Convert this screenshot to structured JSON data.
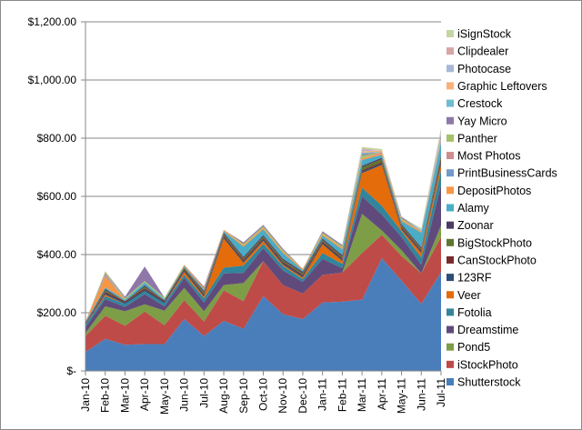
{
  "chart_data": {
    "type": "area",
    "stacked": true,
    "title": "",
    "xlabel": "",
    "ylabel": "",
    "ylim": [
      0,
      1200
    ],
    "y_tick_values": [
      0,
      200,
      400,
      600,
      800,
      1000,
      1200
    ],
    "y_tick_labels": [
      "$-",
      "$200.00",
      "$400.00",
      "$600.00",
      "$800.00",
      "$1,000.00",
      "$1,200.00"
    ],
    "grid": true,
    "legend_position": "right",
    "categories": [
      "Jan-10",
      "Feb-10",
      "Mar-10",
      "Apr-10",
      "May-10",
      "Jun-10",
      "Jul-10",
      "Aug-10",
      "Sep-10",
      "Oct-10",
      "Nov-10",
      "Dec-10",
      "Jan-11",
      "Feb-11",
      "Mar-11",
      "Apr-11",
      "May-11",
      "Jun-11",
      "Jul-11"
    ],
    "series": [
      {
        "name": "Shutterstock",
        "color": "#4a7ebb",
        "values": [
          65,
          110,
          90,
          92,
          92,
          178,
          120,
          172,
          145,
          257,
          195,
          178,
          235,
          238,
          245,
          388,
          310,
          230,
          340
        ]
      },
      {
        "name": "iStockPhoto",
        "color": "#be4b48",
        "values": [
          55,
          80,
          65,
          112,
          65,
          65,
          50,
          105,
          95,
          120,
          100,
          88,
          95,
          100,
          160,
          80,
          85,
          105,
          120
        ]
      },
      {
        "name": "Pond5",
        "color": "#7d9d46",
        "values": [
          10,
          32,
          50,
          25,
          50,
          42,
          35,
          18,
          62,
          0,
          0,
          0,
          0,
          0,
          135,
          15,
          20,
          0,
          40
        ]
      },
      {
        "name": "Dreamstime",
        "color": "#604a7b",
        "values": [
          20,
          25,
          15,
          35,
          15,
          35,
          30,
          40,
          35,
          45,
          50,
          40,
          55,
          15,
          60,
          55,
          45,
          30,
          140
        ]
      },
      {
        "name": "Fotolia",
        "color": "#31859c",
        "values": [
          10,
          10,
          10,
          10,
          10,
          10,
          15,
          20,
          25,
          15,
          15,
          10,
          20,
          15,
          30,
          30,
          20,
          25,
          50
        ]
      },
      {
        "name": "Veer",
        "color": "#e46c0a",
        "values": [
          0,
          5,
          0,
          0,
          0,
          10,
          5,
          100,
          10,
          10,
          5,
          5,
          30,
          10,
          50,
          140,
          5,
          15,
          20
        ]
      },
      {
        "name": "123RF",
        "color": "#2c4d75",
        "values": [
          0,
          5,
          5,
          5,
          5,
          5,
          5,
          5,
          5,
          5,
          5,
          5,
          5,
          5,
          5,
          5,
          5,
          5,
          10
        ]
      },
      {
        "name": "CanStockPhoto",
        "color": "#772c2a",
        "values": [
          5,
          5,
          5,
          5,
          5,
          5,
          5,
          5,
          5,
          5,
          5,
          5,
          5,
          5,
          5,
          5,
          5,
          5,
          10
        ]
      },
      {
        "name": "BigStockPhoto",
        "color": "#5f7530",
        "values": [
          0,
          5,
          0,
          5,
          0,
          5,
          5,
          5,
          5,
          5,
          5,
          5,
          5,
          5,
          10,
          10,
          5,
          5,
          10
        ]
      },
      {
        "name": "Zoonar",
        "color": "#4d3b62",
        "values": [
          0,
          5,
          0,
          5,
          0,
          0,
          5,
          5,
          5,
          5,
          5,
          5,
          5,
          5,
          5,
          5,
          5,
          5,
          5
        ]
      },
      {
        "name": "Alamy",
        "color": "#4bacc6",
        "values": [
          5,
          5,
          5,
          10,
          5,
          5,
          5,
          5,
          35,
          20,
          20,
          5,
          10,
          20,
          20,
          10,
          10,
          50,
          40
        ]
      },
      {
        "name": "DepositPhotos",
        "color": "#f79646",
        "values": [
          0,
          40,
          0,
          0,
          0,
          5,
          5,
          5,
          5,
          5,
          5,
          5,
          5,
          5,
          5,
          5,
          5,
          5,
          5
        ]
      },
      {
        "name": "PrintBusinessCards",
        "color": "#729aca",
        "values": [
          0,
          5,
          0,
          0,
          0,
          0,
          0,
          0,
          0,
          0,
          0,
          0,
          0,
          0,
          0,
          0,
          0,
          0,
          5
        ]
      },
      {
        "name": "Most Photos",
        "color": "#ce8e8d",
        "values": [
          0,
          5,
          0,
          0,
          0,
          0,
          0,
          0,
          0,
          0,
          0,
          0,
          0,
          0,
          0,
          5,
          0,
          0,
          5
        ]
      },
      {
        "name": "Panther",
        "color": "#a5c26b",
        "values": [
          0,
          5,
          5,
          5,
          5,
          0,
          0,
          0,
          5,
          5,
          5,
          0,
          5,
          5,
          10,
          0,
          5,
          0,
          5
        ]
      },
      {
        "name": "Yay Micro",
        "color": "#8e78a8",
        "values": [
          0,
          0,
          5,
          50,
          0,
          0,
          5,
          0,
          5,
          5,
          5,
          0,
          5,
          5,
          5,
          0,
          5,
          0,
          5
        ]
      },
      {
        "name": "Crestock",
        "color": "#6fbcd0",
        "values": [
          0,
          0,
          0,
          0,
          0,
          0,
          0,
          0,
          0,
          0,
          0,
          0,
          0,
          0,
          5,
          0,
          0,
          0,
          5
        ]
      },
      {
        "name": "Graphic Leftovers",
        "color": "#f9b07a",
        "values": [
          0,
          0,
          0,
          0,
          0,
          0,
          0,
          0,
          0,
          0,
          0,
          0,
          0,
          0,
          5,
          5,
          0,
          0,
          5
        ]
      },
      {
        "name": "Photocase",
        "color": "#a6b7d8",
        "values": [
          0,
          0,
          0,
          0,
          0,
          0,
          0,
          0,
          0,
          0,
          0,
          0,
          0,
          0,
          5,
          0,
          0,
          5,
          5
        ]
      },
      {
        "name": "Clipdealer",
        "color": "#d6a5a4",
        "values": [
          0,
          0,
          0,
          0,
          0,
          0,
          0,
          0,
          0,
          0,
          0,
          0,
          0,
          0,
          5,
          0,
          0,
          0,
          5
        ]
      },
      {
        "name": "iSignStock",
        "color": "#c4d6a2",
        "values": [
          0,
          0,
          0,
          0,
          0,
          0,
          0,
          0,
          0,
          0,
          0,
          0,
          0,
          0,
          5,
          5,
          0,
          5,
          5
        ]
      }
    ]
  }
}
